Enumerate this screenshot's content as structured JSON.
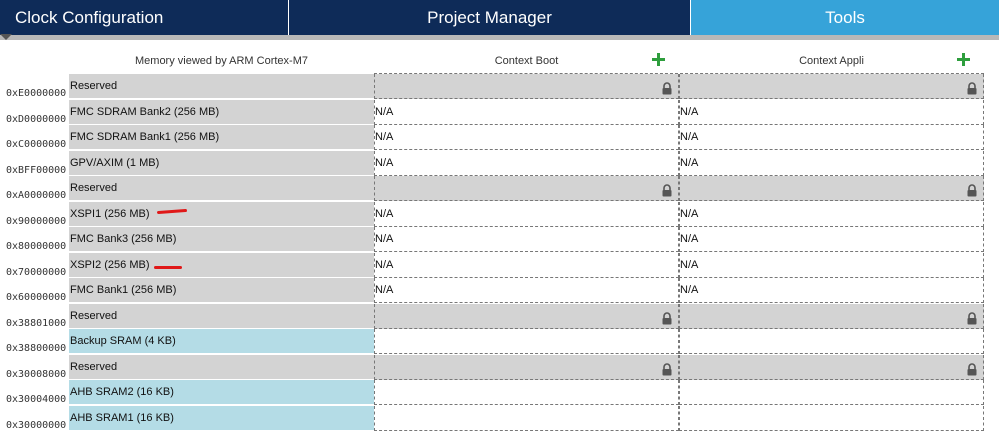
{
  "tabs": [
    {
      "label": "Clock Configuration"
    },
    {
      "label": "Project Manager"
    },
    {
      "label": "Tools"
    }
  ],
  "columns": {
    "memory": "Memory viewed by ARM Cortex-M7",
    "boot": "Context Boot",
    "appli": "Context Appli"
  },
  "rows": [
    {
      "addr": "0xE0000000",
      "name": "Reserved",
      "kind": "reserved",
      "boot": "",
      "appli": ""
    },
    {
      "addr": "0xD0000000",
      "name": "FMC SDRAM Bank2 (256 MB)",
      "kind": "ext",
      "boot": "N/A",
      "appli": "N/A"
    },
    {
      "addr": "0xC0000000",
      "name": "FMC SDRAM Bank1 (256 MB)",
      "kind": "ext",
      "boot": "N/A",
      "appli": "N/A"
    },
    {
      "addr": "0xBFF00000",
      "name": "GPV/AXIM (1 MB)",
      "kind": "ext",
      "boot": "N/A",
      "appli": "N/A"
    },
    {
      "addr": "0xA0000000",
      "name": "Reserved",
      "kind": "reserved",
      "boot": "",
      "appli": ""
    },
    {
      "addr": "0x90000000",
      "name": "XSPI1 (256 MB)",
      "kind": "ext",
      "boot": "N/A",
      "appli": "N/A"
    },
    {
      "addr": "0x80000000",
      "name": "FMC Bank3 (256 MB)",
      "kind": "ext",
      "boot": "N/A",
      "appli": "N/A"
    },
    {
      "addr": "0x70000000",
      "name": "XSPI2 (256 MB)",
      "kind": "ext",
      "boot": "N/A",
      "appli": "N/A"
    },
    {
      "addr": "0x60000000",
      "name": "FMC Bank1 (256 MB)",
      "kind": "ext",
      "boot": "N/A",
      "appli": "N/A"
    },
    {
      "addr": "0x38801000",
      "name": "Reserved",
      "kind": "reserved",
      "boot": "",
      "appli": ""
    },
    {
      "addr": "0x38800000",
      "name": "Backup SRAM (4 KB)",
      "kind": "sram",
      "boot": "",
      "appli": ""
    },
    {
      "addr": "0x30008000",
      "name": "Reserved",
      "kind": "reserved",
      "boot": "",
      "appli": ""
    },
    {
      "addr": "0x30004000",
      "name": "AHB SRAM2 (16 KB)",
      "kind": "sram",
      "boot": "",
      "appli": ""
    },
    {
      "addr": "0x30000000",
      "name": "AHB SRAM1 (16 KB)",
      "kind": "sram",
      "boot": "",
      "appli": ""
    }
  ],
  "icons": {
    "add": "plus-icon",
    "lock": "lock-icon",
    "collapse": "triangle-down-icon"
  },
  "colors": {
    "tab_dark": "#0e2b58",
    "tab_active": "#36a3d9",
    "reserved": "#d3d3d3",
    "sram": "#b4dce6",
    "plus": "#2e9e3d",
    "annotation": "#e01818"
  }
}
